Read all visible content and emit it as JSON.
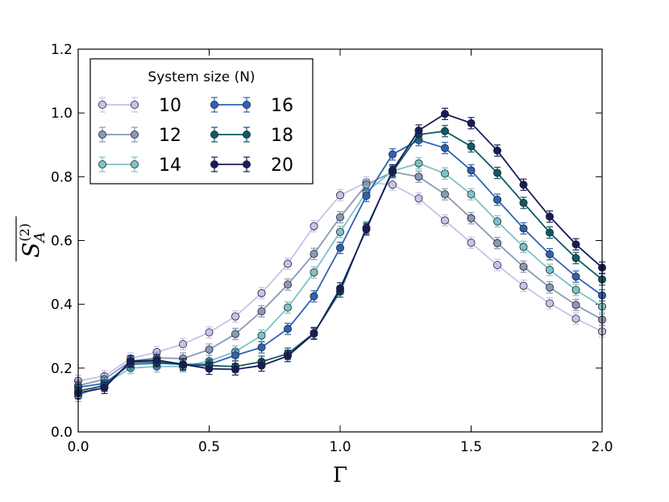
{
  "chart_data": {
    "type": "line",
    "xlabel": "Γ",
    "ylabel": {
      "base": "S",
      "sub": "A",
      "sup": "(2)"
    },
    "xlim": [
      0.0,
      2.0
    ],
    "ylim": [
      0.0,
      1.2
    ],
    "xticks": [
      0.0,
      0.5,
      1.0,
      1.5,
      2.0
    ],
    "xtick_labels": [
      "0.0",
      "0.5",
      "1.0",
      "1.5",
      "2.0"
    ],
    "yticks": [
      0.0,
      0.2,
      0.4,
      0.6,
      0.8,
      1.0,
      1.2
    ],
    "ytick_labels": [
      "0.0",
      "0.2",
      "0.4",
      "0.6",
      "0.8",
      "1.0",
      "1.2"
    ],
    "legend": {
      "title": "System size (N)",
      "placement": "top-left",
      "columns": 2
    },
    "x": [
      0.0,
      0.1,
      0.2,
      0.3,
      0.4,
      0.5,
      0.6,
      0.7,
      0.8,
      0.9,
      1.0,
      1.1,
      1.2,
      1.3,
      1.4,
      1.5,
      1.6,
      1.7,
      1.8,
      1.9,
      2.0
    ],
    "series": [
      {
        "name": "10",
        "color": "#c5c3ea",
        "values": [
          0.16,
          0.175,
          0.23,
          0.25,
          0.275,
          0.312,
          0.362,
          0.435,
          0.527,
          0.645,
          0.742,
          0.782,
          0.775,
          0.732,
          0.663,
          0.593,
          0.523,
          0.458,
          0.403,
          0.355,
          0.315
        ]
      },
      {
        "name": "12",
        "color": "#8899b5",
        "values": [
          0.145,
          0.165,
          0.222,
          0.232,
          0.23,
          0.258,
          0.307,
          0.378,
          0.462,
          0.558,
          0.673,
          0.775,
          0.815,
          0.8,
          0.745,
          0.67,
          0.592,
          0.518,
          0.453,
          0.398,
          0.352
        ]
      },
      {
        "name": "14",
        "color": "#7cc2c7",
        "values": [
          0.113,
          0.15,
          0.2,
          0.205,
          0.205,
          0.222,
          0.252,
          0.302,
          0.39,
          0.5,
          0.627,
          0.752,
          0.818,
          0.842,
          0.81,
          0.745,
          0.66,
          0.58,
          0.508,
          0.445,
          0.393
        ]
      },
      {
        "name": "16",
        "color": "#2e62b3",
        "values": [
          0.14,
          0.152,
          0.212,
          0.215,
          0.212,
          0.212,
          0.24,
          0.265,
          0.323,
          0.425,
          0.577,
          0.74,
          0.87,
          0.915,
          0.89,
          0.82,
          0.728,
          0.638,
          0.557,
          0.487,
          0.428
        ]
      },
      {
        "name": "18",
        "color": "#0e5a66",
        "values": [
          0.128,
          0.145,
          0.218,
          0.22,
          0.21,
          0.208,
          0.205,
          0.22,
          0.245,
          0.31,
          0.44,
          0.64,
          0.815,
          0.932,
          0.943,
          0.895,
          0.812,
          0.718,
          0.625,
          0.545,
          0.478
        ]
      },
      {
        "name": "20",
        "color": "#171c5a",
        "values": [
          0.122,
          0.138,
          0.222,
          0.225,
          0.212,
          0.198,
          0.196,
          0.208,
          0.238,
          0.308,
          0.45,
          0.635,
          0.82,
          0.945,
          0.997,
          0.968,
          0.882,
          0.775,
          0.675,
          0.588,
          0.515
        ]
      }
    ]
  }
}
